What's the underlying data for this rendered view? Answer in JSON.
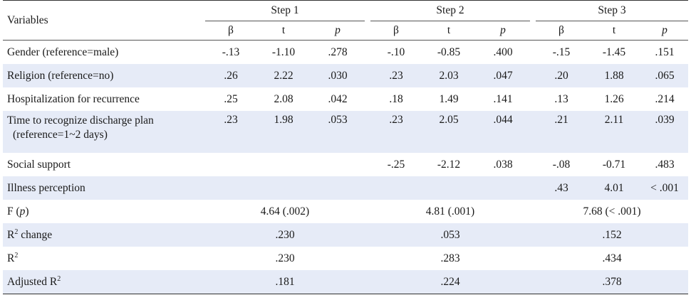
{
  "header": {
    "variables": "Variables",
    "steps": [
      "Step 1",
      "Step 2",
      "Step 3"
    ],
    "sub": {
      "beta": "β",
      "t": "t",
      "p": "p"
    }
  },
  "rows": [
    {
      "label": "Gender (reference=male)",
      "s1": [
        "-.13",
        "-1.10",
        ".278"
      ],
      "s2": [
        "-.10",
        "-0.85",
        ".400"
      ],
      "s3": [
        "-.15",
        "-1.45",
        ".151"
      ]
    },
    {
      "label": "Religion (reference=no)",
      "s1": [
        ".26",
        "2.22",
        ".030"
      ],
      "s2": [
        ".23",
        "2.03",
        ".047"
      ],
      "s3": [
        ".20",
        "1.88",
        ".065"
      ]
    },
    {
      "label": "Hospitalization for recurrence",
      "s1": [
        ".25",
        "2.08",
        ".042"
      ],
      "s2": [
        ".18",
        "1.49",
        ".141"
      ],
      "s3": [
        ".13",
        "1.26",
        ".214"
      ]
    },
    {
      "label": "Time to recognize discharge plan",
      "label2": "(reference=1~2 days)",
      "s1": [
        ".23",
        "1.98",
        ".053"
      ],
      "s2": [
        ".23",
        "2.05",
        ".044"
      ],
      "s3": [
        ".21",
        "2.11",
        ".039"
      ]
    },
    {
      "label": "Social support",
      "s1": [
        "",
        "",
        ""
      ],
      "s2": [
        "-.25",
        "-2.12",
        ".038"
      ],
      "s3": [
        "-.08",
        "-0.71",
        ".483"
      ]
    },
    {
      "label": "Illness perception",
      "s1": [
        "",
        "",
        ""
      ],
      "s2": [
        "",
        "",
        ""
      ],
      "s3": [
        ".43",
        "4.01",
        "< .001"
      ]
    }
  ],
  "summary": {
    "f": {
      "label_pre": "F (",
      "label_p": "p",
      "label_post": ")",
      "values": [
        "4.64 (.002)",
        "4.81 (.001)",
        "7.68 (< .001)"
      ]
    },
    "r2change": {
      "label_r": "R",
      "label_sup": "2",
      "label_post": " change",
      "values": [
        ".230",
        ".053",
        ".152"
      ]
    },
    "r2": {
      "label_r": "R",
      "label_sup": "2",
      "values": [
        ".230",
        ".283",
        ".434"
      ]
    },
    "adjr2": {
      "label_pre": "Adjusted R",
      "label_sup": "2",
      "values": [
        ".181",
        ".224",
        ".378"
      ]
    }
  }
}
